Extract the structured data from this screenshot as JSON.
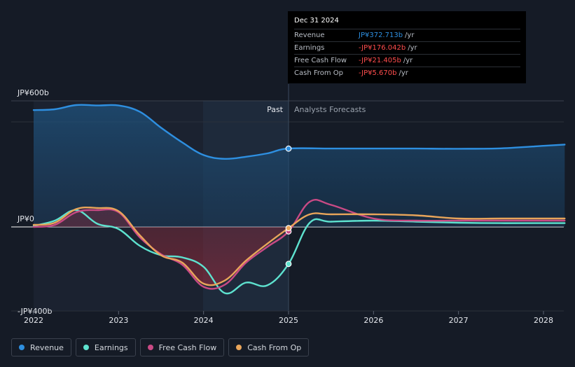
{
  "chart_data": {
    "type": "line",
    "y_axis_labels": [
      "JP¥600b",
      "JP¥0",
      "-JP¥400b"
    ],
    "ylim": [
      -400,
      600
    ],
    "x_ticks": [
      "2022",
      "2023",
      "2024",
      "2025",
      "2026",
      "2027",
      "2028"
    ],
    "past_label": "Past",
    "forecast_label": "Analysts Forecasts",
    "past_forecast_boundary": 2025.0,
    "series": [
      {
        "name": "Revenue",
        "color": "#2e8fe0",
        "x": [
          2022.0,
          2022.25,
          2022.5,
          2022.75,
          2023.0,
          2023.25,
          2023.5,
          2023.75,
          2024.0,
          2024.25,
          2024.5,
          2024.75,
          2025.0,
          2025.5,
          2026.0,
          2026.5,
          2027.0,
          2027.5,
          2028.0,
          2028.25
        ],
        "values": [
          556,
          560,
          580,
          578,
          578,
          548,
          472,
          402,
          342,
          324,
          334,
          350,
          373,
          373,
          373,
          373,
          372,
          374,
          386,
          392
        ]
      },
      {
        "name": "Earnings",
        "color": "#5ee2cf",
        "x": [
          2022.0,
          2022.25,
          2022.5,
          2022.75,
          2023.0,
          2023.25,
          2023.5,
          2023.75,
          2024.0,
          2024.25,
          2024.5,
          2024.75,
          2025.0,
          2025.25,
          2025.5,
          2026.0,
          2026.5,
          2027.0,
          2027.5,
          2028.0,
          2028.25
        ],
        "values": [
          5,
          30,
          80,
          15,
          -10,
          -90,
          -135,
          -145,
          -190,
          -315,
          -265,
          -278,
          -176,
          20,
          25,
          30,
          25,
          20,
          18,
          18,
          18
        ]
      },
      {
        "name": "Free Cash Flow",
        "color": "#c94a85",
        "x": [
          2022.0,
          2022.25,
          2022.5,
          2022.75,
          2023.0,
          2023.25,
          2023.5,
          2023.75,
          2024.0,
          2024.25,
          2024.5,
          2024.75,
          2025.0,
          2025.25,
          2025.5,
          2026.0,
          2026.5,
          2027.0,
          2027.5,
          2028.0,
          2028.25
        ],
        "values": [
          0,
          10,
          70,
          80,
          70,
          -50,
          -130,
          -180,
          -285,
          -275,
          -170,
          -95,
          -21.405,
          120,
          105,
          40,
          30,
          30,
          30,
          30,
          30
        ]
      },
      {
        "name": "Cash From Op",
        "color": "#e9a55a",
        "x": [
          2022.0,
          2022.25,
          2022.5,
          2022.75,
          2023.0,
          2023.25,
          2023.5,
          2023.75,
          2024.0,
          2024.25,
          2024.5,
          2024.75,
          2025.0,
          2025.25,
          2025.5,
          2026.0,
          2026.5,
          2027.0,
          2027.5,
          2028.0,
          2028.25
        ],
        "values": [
          10,
          20,
          85,
          90,
          75,
          -40,
          -135,
          -170,
          -270,
          -255,
          -160,
          -80,
          -5.67,
          60,
          60,
          60,
          55,
          40,
          40,
          40,
          40
        ]
      }
    ],
    "highlight_points": [
      {
        "series": "Revenue",
        "x": 2025.0,
        "y": 372.713
      },
      {
        "series": "Earnings",
        "x": 2025.0,
        "y": -176.042
      },
      {
        "series": "Free Cash Flow",
        "x": 2025.0,
        "y": -21.405
      },
      {
        "series": "Cash From Op",
        "x": 2025.0,
        "y": -5.67
      }
    ],
    "grid": false,
    "legend_position": "bottom-left"
  },
  "tooltip": {
    "date": "Dec 31 2024",
    "rows": [
      {
        "label": "Revenue",
        "value": "JP¥372.713b",
        "unit": "/yr",
        "color": "#2e8fe0"
      },
      {
        "label": "Earnings",
        "value": "-JP¥176.042b",
        "unit": "/yr",
        "color": "#ff4d4d"
      },
      {
        "label": "Free Cash Flow",
        "value": "-JP¥21.405b",
        "unit": "/yr",
        "color": "#ff4d4d"
      },
      {
        "label": "Cash From Op",
        "value": "-JP¥5.670b",
        "unit": "/yr",
        "color": "#ff4d4d"
      }
    ]
  },
  "legend": [
    {
      "label": "Revenue",
      "color": "#2e8fe0"
    },
    {
      "label": "Earnings",
      "color": "#5ee2cf"
    },
    {
      "label": "Free Cash Flow",
      "color": "#c94a85"
    },
    {
      "label": "Cash From Op",
      "color": "#e9a55a"
    }
  ]
}
